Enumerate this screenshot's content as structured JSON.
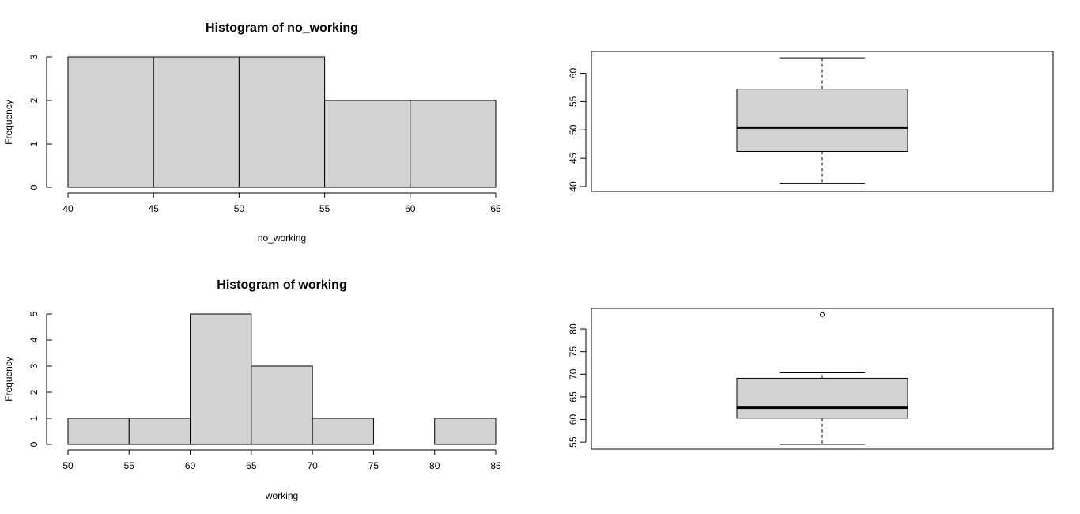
{
  "chart_data": [
    {
      "type": "bar",
      "subtype": "histogram",
      "title": "Histogram of no_working",
      "xlabel": "no_working",
      "ylabel": "Frequency",
      "breaks": [
        40,
        45,
        50,
        55,
        60,
        65
      ],
      "counts": [
        3,
        3,
        3,
        2,
        2
      ],
      "xlim": [
        40,
        65
      ],
      "ylim": [
        0,
        3
      ],
      "xticks": [
        40,
        45,
        50,
        55,
        60,
        65
      ],
      "yticks": [
        0,
        1,
        2,
        3
      ],
      "fill": "#d3d3d3",
      "grid": false
    },
    {
      "type": "boxplot",
      "title": "",
      "min": 40.5,
      "q1": 46.2,
      "median": 50.4,
      "q3": 57.2,
      "max": 62.7,
      "outliers": [],
      "ylim": [
        40,
        63
      ],
      "yticks": [
        40,
        45,
        50,
        55,
        60
      ],
      "fill": "#d3d3d3",
      "grid": false
    },
    {
      "type": "bar",
      "subtype": "histogram",
      "title": "Histogram of working",
      "xlabel": "working",
      "ylabel": "Frequency",
      "breaks": [
        50,
        55,
        60,
        65,
        70,
        75,
        80,
        85
      ],
      "counts": [
        1,
        1,
        5,
        3,
        1,
        0,
        1
      ],
      "xlim": [
        50,
        85
      ],
      "ylim": [
        0,
        5
      ],
      "xticks": [
        50,
        55,
        60,
        65,
        70,
        75,
        80,
        85
      ],
      "yticks": [
        0,
        1,
        2,
        3,
        4,
        5
      ],
      "fill": "#d3d3d3",
      "grid": false
    },
    {
      "type": "boxplot",
      "title": "",
      "min": 54.5,
      "q1": 60.3,
      "median": 62.6,
      "q3": 69.1,
      "max": 70.3,
      "outliers": [
        83.2
      ],
      "ylim": [
        54.5,
        83.5
      ],
      "yticks": [
        55,
        60,
        65,
        70,
        75,
        80
      ],
      "fill": "#d3d3d3",
      "grid": false
    }
  ]
}
